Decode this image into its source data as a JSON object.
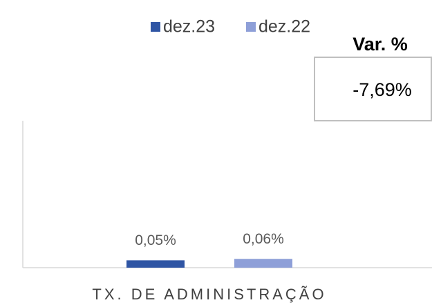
{
  "chart_data": {
    "type": "bar",
    "categories": [
      "TX. DE ADMINISTRAÇÃO"
    ],
    "series": [
      {
        "name": "dez.23",
        "color": "#2f55a4",
        "values": [
          0.05
        ],
        "value_labels": [
          "0,05%"
        ]
      },
      {
        "name": "dez.22",
        "color": "#8e9fd8",
        "values": [
          0.06
        ],
        "value_labels": [
          "0,06%"
        ]
      }
    ],
    "ylim": [
      0,
      1
    ],
    "legend": "top",
    "annotation": {
      "title": "Var. %",
      "text": "-7,69%"
    }
  }
}
